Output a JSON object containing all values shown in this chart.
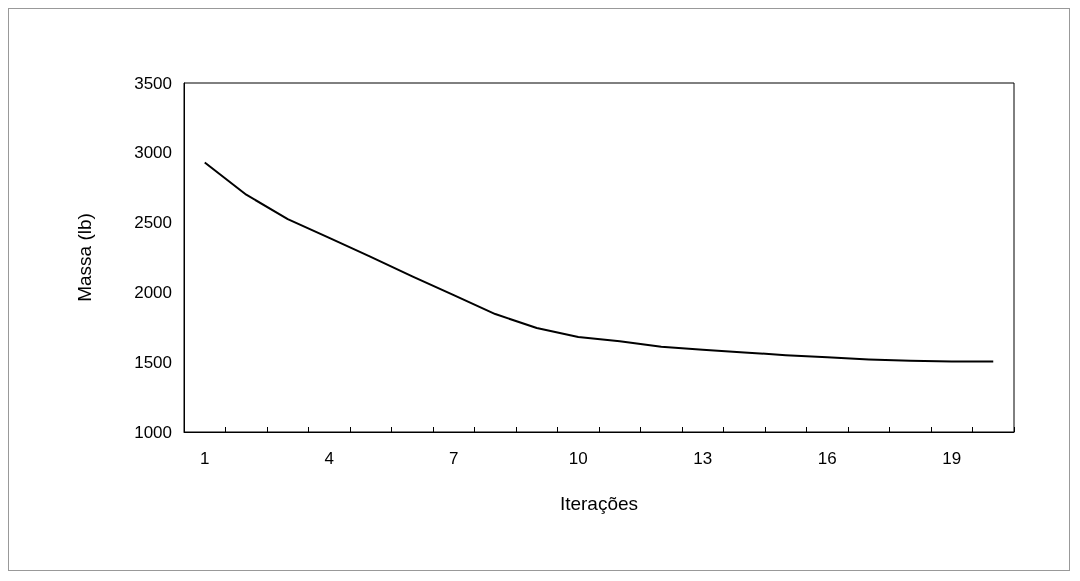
{
  "chart_data": {
    "type": "line",
    "xlabel": "Iterações",
    "ylabel": "Massa (lb)",
    "categories": [
      "1",
      null,
      null,
      "4",
      null,
      null,
      "7",
      null,
      null,
      "10",
      null,
      null,
      "13",
      null,
      null,
      "16",
      null,
      null,
      "19",
      null
    ],
    "series": [
      {
        "color": "#000000",
        "values": [
          2930,
          2700,
          2525,
          2390,
          2255,
          2115,
          1980,
          1845,
          1745,
          1680,
          1650,
          1610,
          1590,
          1570,
          1550,
          1535,
          1520,
          1510,
          1505,
          1505
        ]
      }
    ],
    "ylim": [
      1000,
      3500
    ],
    "yticks": [
      1000,
      1500,
      2000,
      2500,
      3000,
      3500
    ],
    "grid": false,
    "marker": "none",
    "line_style": "solid"
  }
}
